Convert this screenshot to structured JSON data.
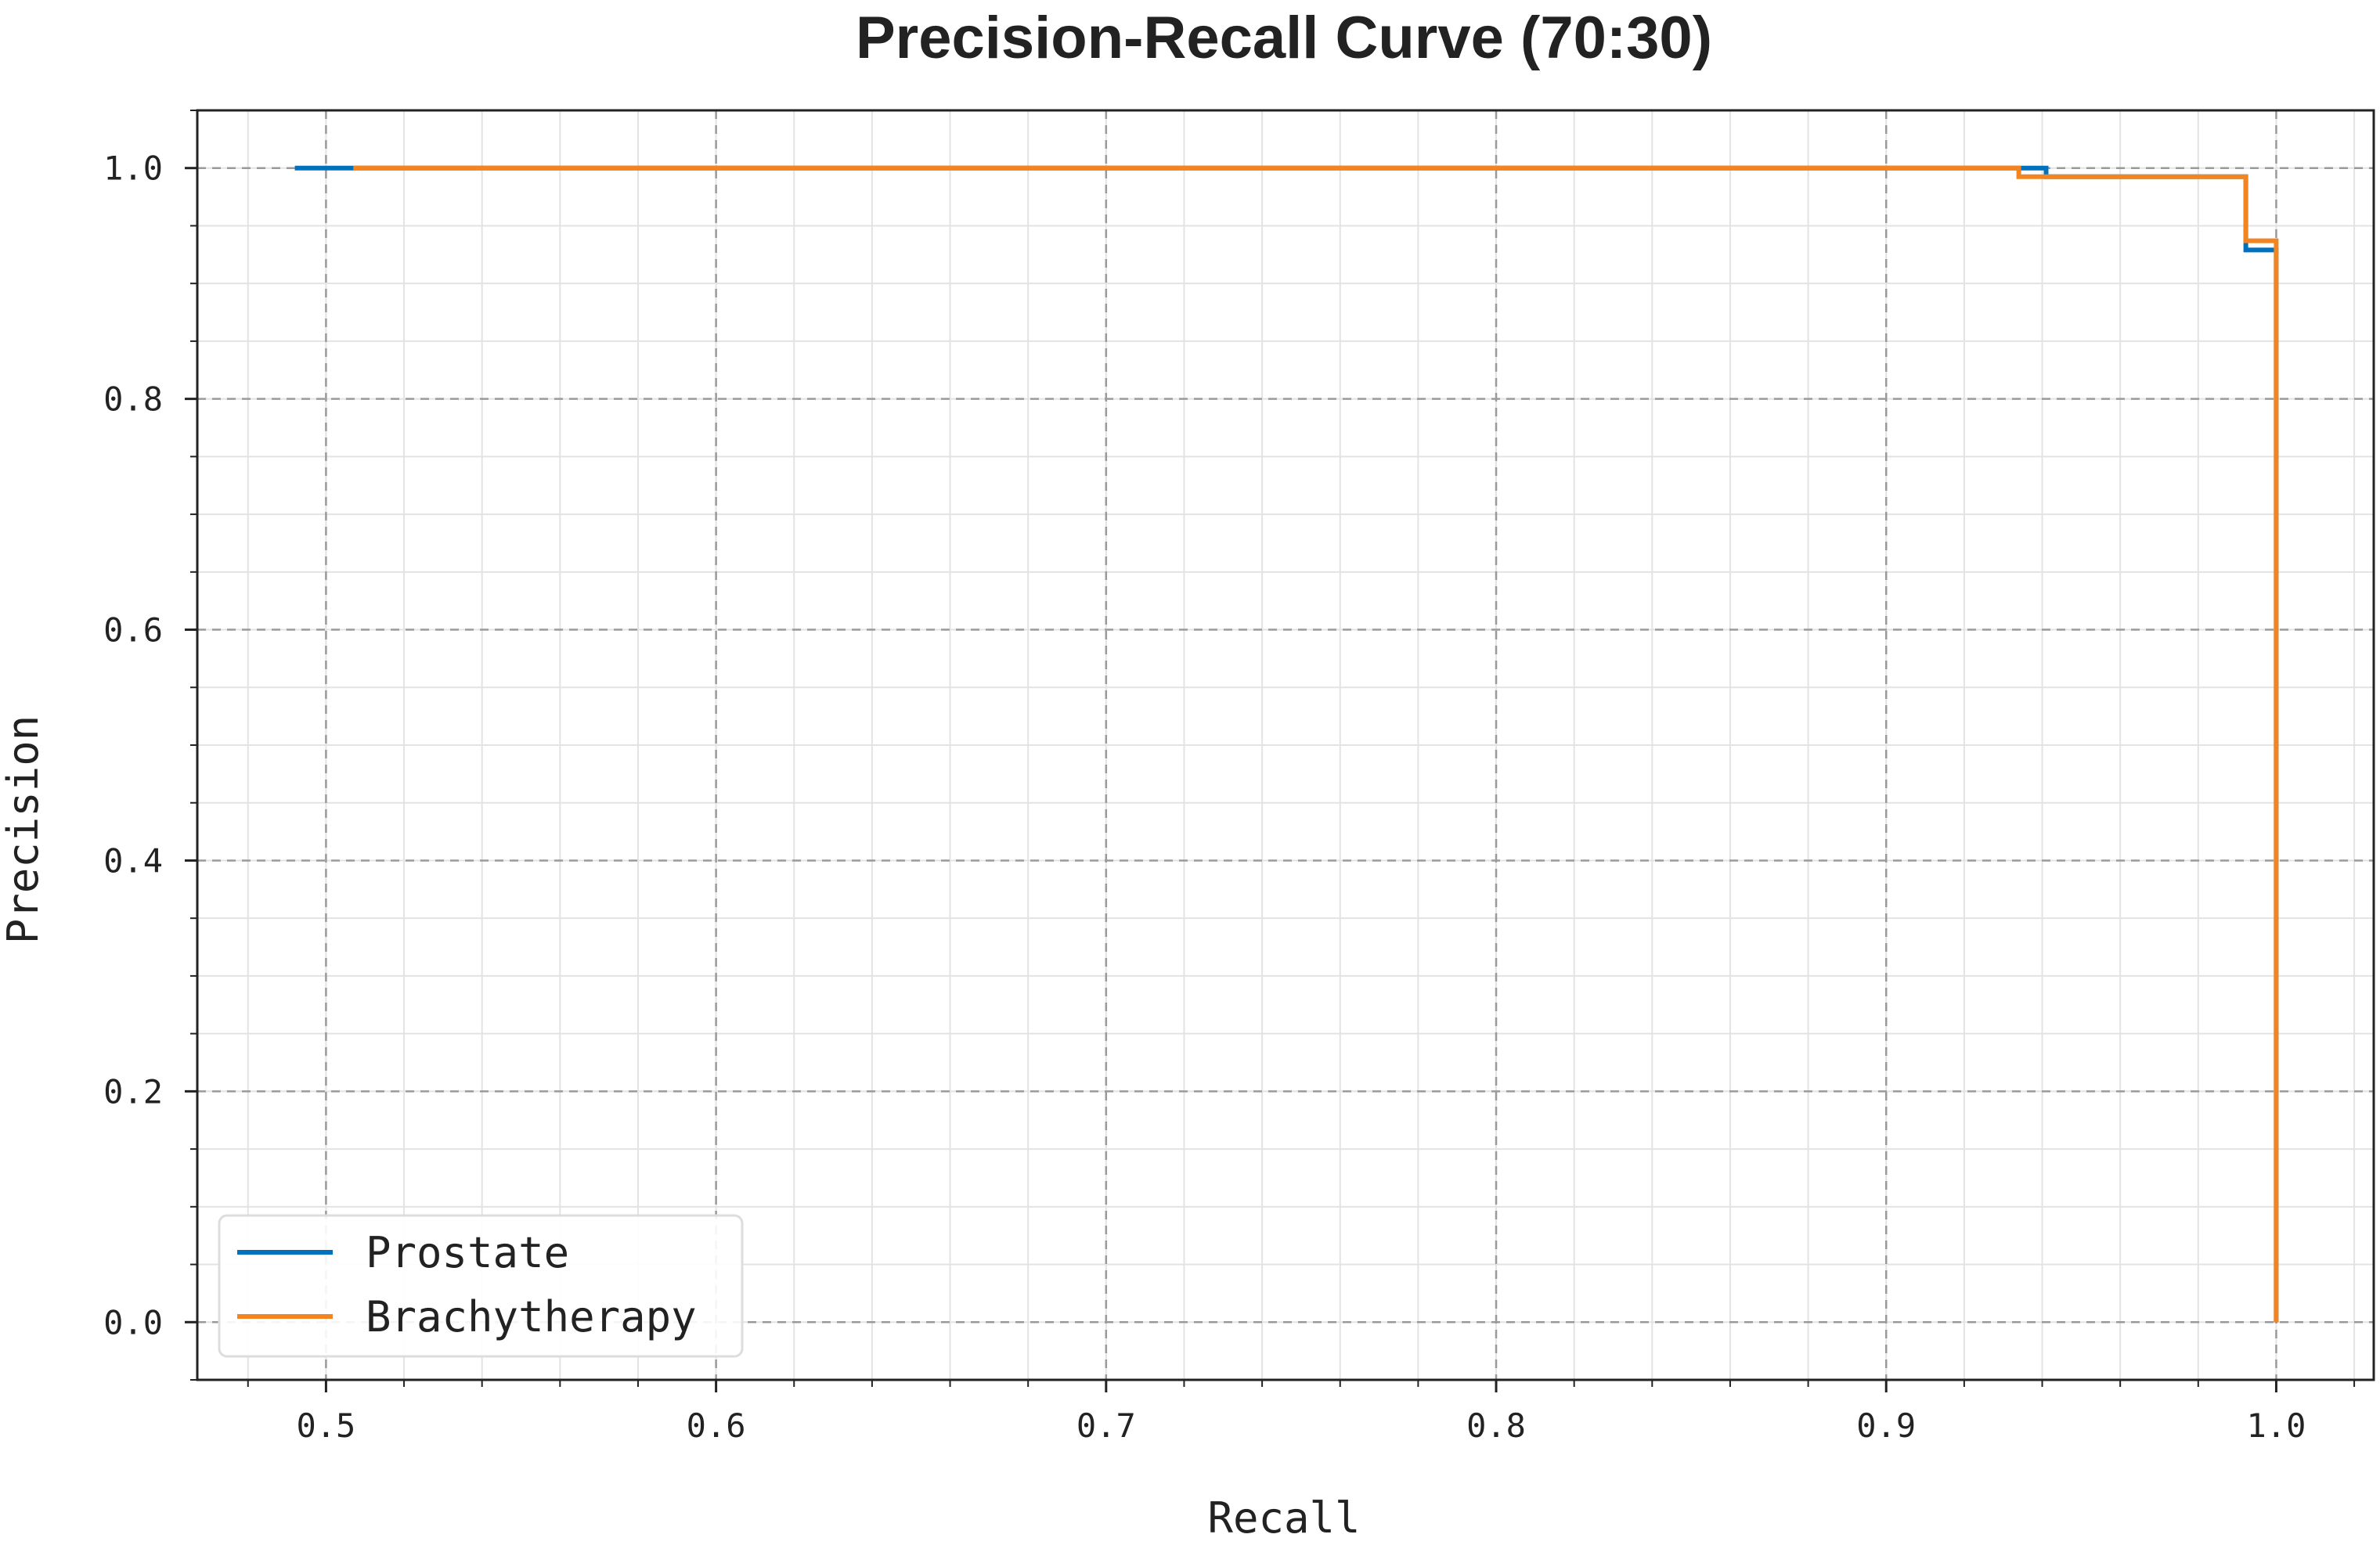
{
  "chart_data": {
    "type": "line",
    "title": "Precision-Recall Curve (70:30)",
    "xlabel": "Recall",
    "ylabel": "Precision",
    "xlim": [
      0.467,
      1.025
    ],
    "ylim": [
      -0.05,
      1.05
    ],
    "x_ticks": [
      "0.5",
      "0.6",
      "0.7",
      "0.8",
      "0.9",
      "1.0"
    ],
    "y_ticks": [
      "0.0",
      "0.2",
      "0.4",
      "0.6",
      "0.8",
      "1.0"
    ],
    "grid": true,
    "legend_position": "lower-left",
    "series": [
      {
        "name": "Prostate",
        "color": "#0072BD",
        "x": [
          0.492,
          0.941,
          0.941,
          0.9922,
          0.9922,
          1.0,
          1.0
        ],
        "y": [
          1.0,
          1.0,
          0.9925,
          0.9925,
          0.929,
          0.929,
          0.0
        ]
      },
      {
        "name": "Brachytherapy",
        "color": "#F28522",
        "x": [
          0.507,
          0.934,
          0.934,
          0.9922,
          0.9922,
          1.0,
          1.0
        ],
        "y": [
          1.0,
          1.0,
          0.9925,
          0.9925,
          0.937,
          0.937,
          0.0
        ]
      }
    ]
  }
}
